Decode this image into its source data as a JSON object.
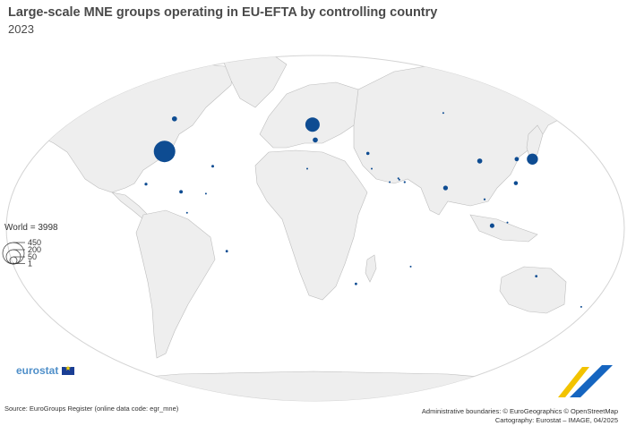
{
  "title": "Large-scale MNE groups operating in EU-EFTA by controlling country",
  "subtitle": "2023",
  "legend": {
    "world_label": "World = 3998",
    "size_steps": [
      "450",
      "200",
      "50",
      "1"
    ]
  },
  "logo": {
    "text": "eurostat"
  },
  "source": "Source: EuroGroups Register (online data code: egr_mne)",
  "credits": {
    "boundaries": "Administrative boundaries: © EuroGeographics © OpenStreetMap",
    "cartography": "Cartography: Eurostat – IMAGE, 04/2025"
  },
  "colors": {
    "ocean": "#ffffff",
    "land": "#eeeeee",
    "border": "#bdbdbd",
    "bubble": "#0e4c92"
  },
  "chart_data": {
    "type": "proportional-symbol-map",
    "measure": "Number of large-scale MNE groups",
    "world_total": 3998,
    "legend_values": [
      450,
      200,
      50,
      1
    ],
    "points": [
      {
        "lon": -98,
        "lat": 40,
        "value": 450
      },
      {
        "lon": -2,
        "lat": 54,
        "value": 200
      },
      {
        "lon": 0,
        "lat": 46,
        "value": 25
      },
      {
        "lon": 138,
        "lat": 36,
        "value": 120
      },
      {
        "lon": -106,
        "lat": 57,
        "value": 25
      },
      {
        "lon": 104,
        "lat": 35,
        "value": 25
      },
      {
        "lon": 128,
        "lat": 36,
        "value": 18
      },
      {
        "lon": 78,
        "lat": 21,
        "value": 22
      },
      {
        "lon": 103,
        "lat": 1.3,
        "value": 20
      },
      {
        "lon": 121,
        "lat": 23.5,
        "value": 16
      },
      {
        "lon": -52,
        "lat": -12,
        "value": 6
      },
      {
        "lon": -64,
        "lat": 32.3,
        "value": 7
      },
      {
        "lon": -102,
        "lat": 23,
        "value": 8
      },
      {
        "lon": -80,
        "lat": 19,
        "value": 12
      },
      {
        "lon": -65,
        "lat": 18,
        "value": 2
      },
      {
        "lon": -75,
        "lat": 8,
        "value": 1
      },
      {
        "lon": 34,
        "lat": 39,
        "value": 10
      },
      {
        "lon": 35,
        "lat": 31,
        "value": 3
      },
      {
        "lon": 45,
        "lat": 24,
        "value": 2
      },
      {
        "lon": 51,
        "lat": 25.3,
        "value": 3
      },
      {
        "lon": 54,
        "lat": 24,
        "value": 4
      },
      {
        "lon": 50.5,
        "lat": 26,
        "value": 1
      },
      {
        "lon": 57,
        "lat": -20,
        "value": 2
      },
      {
        "lon": 134,
        "lat": -25,
        "value": 6
      },
      {
        "lon": 25,
        "lat": -29,
        "value": 6
      },
      {
        "lon": 100,
        "lat": 15,
        "value": 4
      },
      {
        "lon": 100,
        "lat": 60,
        "value": 1
      },
      {
        "lon": -5,
        "lat": 31,
        "value": 1
      },
      {
        "lon": 174,
        "lat": -41,
        "value": 1
      },
      {
        "lon": 112,
        "lat": 3,
        "value": 2
      }
    ]
  }
}
